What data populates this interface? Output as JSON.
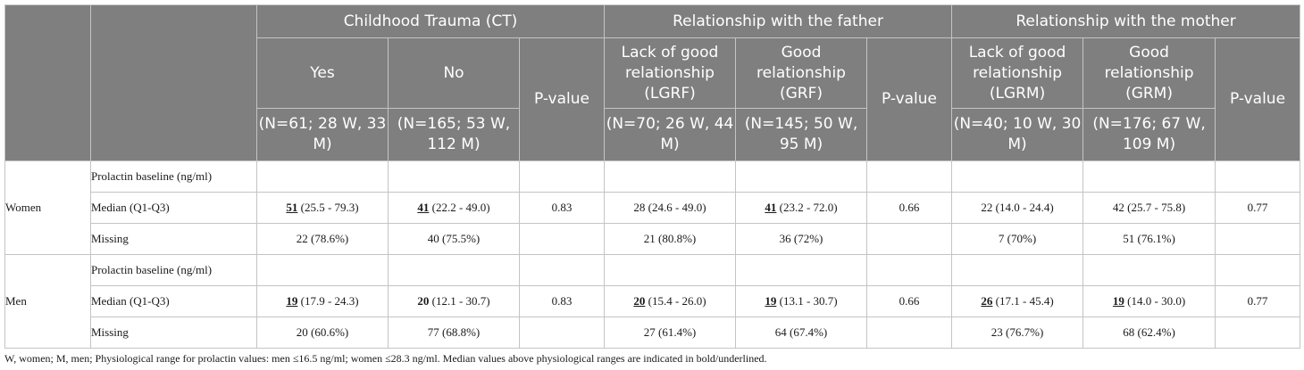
{
  "header": {
    "ct": "Childhood Trauma (CT)",
    "father": "Relationship with the father",
    "mother": "Relationship with the mother",
    "ct_yes": "Yes",
    "ct_no": "No",
    "pvalue": "P-value",
    "lgrf": "Lack of good relationship (LGRF)",
    "grf": "Good relationship (GRF)",
    "lgrm": "Lack of good relationship (LGRM)",
    "grm": "Good relationship (GRM)",
    "ct_yes_n": "(N=61; 28 W, 33 M)",
    "ct_no_n": "(N=165; 53 W, 112 M)",
    "lgrf_n": "(N=70; 26 W, 44 M)",
    "grf_n": "(N=145; 50 W, 95 M)",
    "lgrm_n": "(N=40; 10 W, 30 M)",
    "grm_n": "(N=176; 67 W, 109 M)"
  },
  "women": {
    "group": "Women",
    "prolactin_label": "Prolactin baseline (ng/ml)",
    "median_label": "Median (Q1-Q3)",
    "missing_label": "Missing",
    "median": [
      {
        "v": "51",
        "r": " (25.5 - 79.3)"
      },
      {
        "v": "41",
        "r": " (22.2 - 49.0)"
      },
      {
        "v": "28",
        "r": " (24.6 - 49.0)"
      },
      {
        "v": "41",
        "r": " (23.2 - 72.0)"
      },
      {
        "v": "22",
        "r": " (14.0 - 24.4)"
      },
      {
        "v": "42",
        "r": " (25.7 - 75.8)"
      }
    ],
    "pvalues": [
      "0.83",
      "0.66",
      "0.77"
    ],
    "missing": [
      "22 (78.6%)",
      "40 (75.5%)",
      "21 (80.8%)",
      "36 (72%)",
      "7 (70%)",
      "51 (76.1%)"
    ]
  },
  "men": {
    "group": "Men",
    "prolactin_label": "Prolactin baseline (ng/ml)",
    "median_label": "Median (Q1-Q3)",
    "missing_label": "Missing",
    "median": [
      {
        "v": "19",
        "r": " (17.9 - 24.3)"
      },
      {
        "v": "20",
        "r": " (12.1 - 30.7)"
      },
      {
        "v": "20",
        "r": " (15.4 - 26.0)"
      },
      {
        "v": "19",
        "r": " (13.1 - 30.7)"
      },
      {
        "v": "26",
        "r": " (17.1 - 45.4)"
      },
      {
        "v": "19",
        "r": " (14.0 - 30.0)"
      }
    ],
    "pvalues": [
      "0.83",
      "0.66",
      "0.77"
    ],
    "missing": [
      "20 (60.6%)",
      "77 (68.8%)",
      "27 (61.4%)",
      "64 (67.4%)",
      "23 (76.7%)",
      "68 (62.4%)"
    ]
  },
  "footnote": "W, women; M, men; Physiological range for prolactin values: men ≤16.5 ng/ml; women ≤28.3 ng/ml. Median values above physiological ranges are indicated in bold/underlined."
}
